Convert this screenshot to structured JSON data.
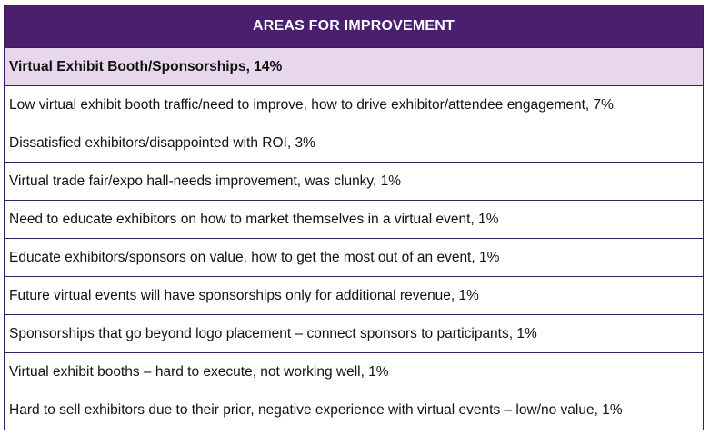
{
  "table": {
    "header": "AREAS FOR IMPROVEMENT",
    "section_title": "Virtual Exhibit Booth/Sponsorships, 14%",
    "rows": [
      "Low virtual exhibit booth traffic/need to improve, how to drive exhibitor/attendee engagement, 7%",
      "Dissatisfied exhibitors/disappointed with ROI, 3%",
      "Virtual trade fair/expo hall-needs improvement, was clunky, 1%",
      "Need to educate exhibitors on how to market themselves in a virtual event, 1%",
      "Educate exhibitors/sponsors on value, how to get the most out of an event, 1%",
      "Future virtual events will have sponsorships only for additional revenue, 1%",
      "Sponsorships that go beyond logo placement – connect sponsors to participants, 1%",
      "Virtual exhibit booths – hard to execute, not working well, 1%",
      "Hard to sell exhibitors due to their prior, negative experience with virtual events – low/no value, 1%"
    ]
  },
  "colors": {
    "header_bg": "#4a1f6e",
    "section_bg": "#e7d6ec",
    "border": "#3b1d5e"
  }
}
